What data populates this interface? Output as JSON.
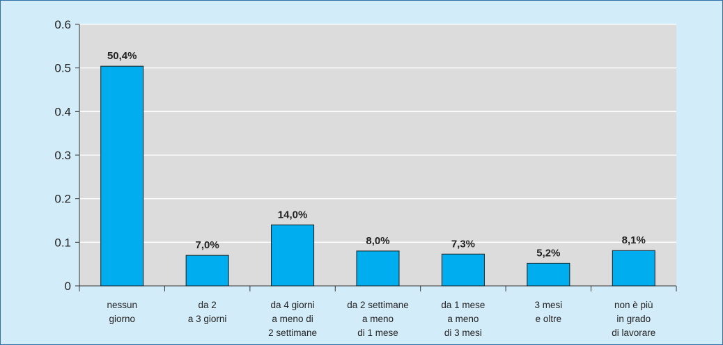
{
  "chart_data": {
    "type": "bar",
    "categories": [
      [
        "nessun",
        "giorno"
      ],
      [
        "da 2",
        "a 3 giorni"
      ],
      [
        "da 4 giorni",
        "a meno di",
        "2 settimane"
      ],
      [
        "da 2 settimane",
        "a meno",
        "di 1 mese"
      ],
      [
        "da 1 mese",
        "a meno",
        "di 3 mesi"
      ],
      [
        "3 mesi",
        "e oltre"
      ],
      [
        "non è più",
        "in grado",
        "di lavorare"
      ]
    ],
    "values": [
      0.504,
      0.07,
      0.14,
      0.08,
      0.073,
      0.052,
      0.081
    ],
    "data_labels": [
      "50,4%",
      "7,0%",
      "14,0%",
      "8,0%",
      "7,3%",
      "5,2%",
      "8,1%"
    ],
    "yticks": [
      "0",
      "0.1",
      "0.2",
      "0.3",
      "0.4",
      "0.5",
      "0.6"
    ],
    "ylim": [
      0,
      0.6
    ],
    "title": "",
    "xlabel": "",
    "ylabel": "",
    "grid": true
  },
  "colors": {
    "background": "#d3ecf9",
    "plot_area": "#dcdcdc",
    "bar": "#00aeef",
    "gridline": "#ffffff",
    "axis": "#333333"
  }
}
